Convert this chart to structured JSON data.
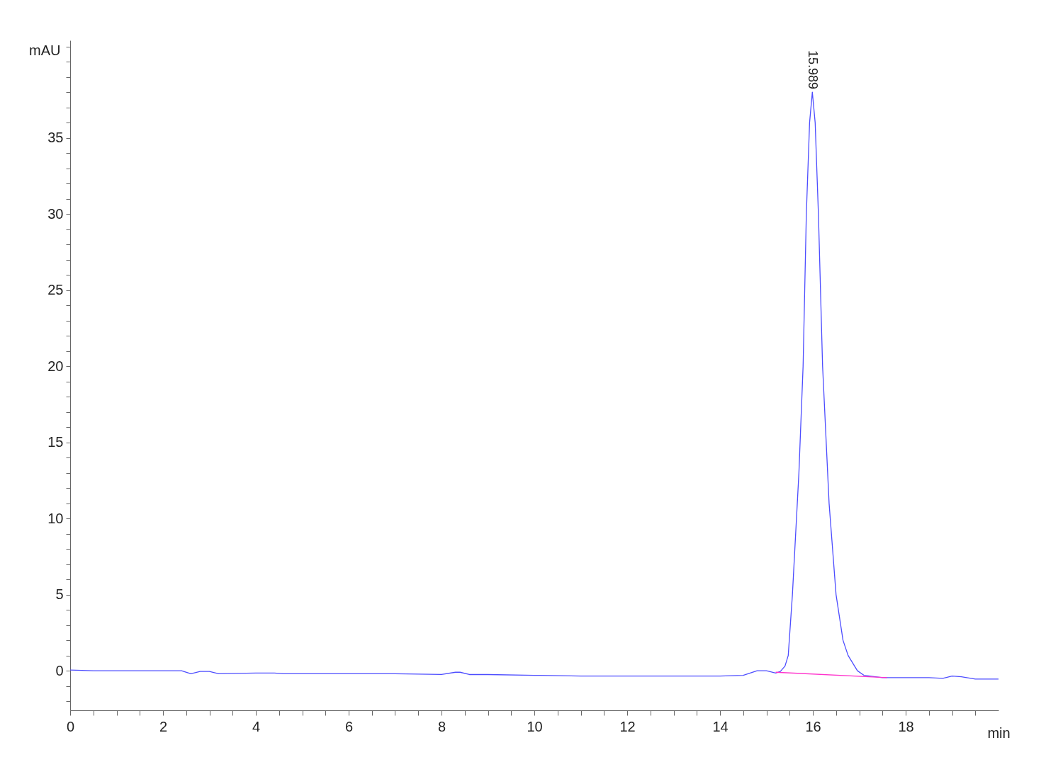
{
  "chart_data": {
    "type": "line",
    "xlabel": "min",
    "ylabel": "mAU",
    "xlim": [
      0,
      20
    ],
    "ylim": [
      -2.6,
      41.4
    ],
    "xticks": [
      0,
      {
        "value": 0.5,
        "label": null
      },
      {
        "value": 1,
        "label": null
      },
      {
        "value": 1.5,
        "label": null
      },
      2,
      {
        "value": 2.5,
        "label": null
      },
      {
        "value": 3,
        "label": null
      },
      {
        "value": 3.5,
        "label": null
      },
      4,
      {
        "value": 4.5,
        "label": null
      },
      {
        "value": 5,
        "label": null
      },
      {
        "value": 5.5,
        "label": null
      },
      6,
      {
        "value": 6.5,
        "label": null
      },
      {
        "value": 7,
        "label": null
      },
      {
        "value": 7.5,
        "label": null
      },
      8,
      {
        "value": 8.5,
        "label": null
      },
      {
        "value": 9,
        "label": null
      },
      {
        "value": 9.5,
        "label": null
      },
      10,
      {
        "value": 10.5,
        "label": null
      },
      {
        "value": 11,
        "label": null
      },
      {
        "value": 11.5,
        "label": null
      },
      12,
      {
        "value": 12.5,
        "label": null
      },
      {
        "value": 13,
        "label": null
      },
      {
        "value": 13.5,
        "label": null
      },
      14,
      {
        "value": 14.5,
        "label": null
      },
      {
        "value": 15,
        "label": null
      },
      {
        "value": 15.5,
        "label": null
      },
      16,
      {
        "value": 16.5,
        "label": null
      },
      {
        "value": 17,
        "label": null
      },
      {
        "value": 17.5,
        "label": null
      },
      18,
      {
        "value": 18.5,
        "label": null
      },
      {
        "value": 19,
        "label": null
      },
      {
        "value": 19.5,
        "label": null
      }
    ],
    "yticks": [
      {
        "value": -2,
        "label": null
      },
      {
        "value": -1,
        "label": null
      },
      0,
      {
        "value": 1,
        "label": null
      },
      {
        "value": 2,
        "label": null
      },
      {
        "value": 3,
        "label": null
      },
      {
        "value": 4,
        "label": null
      },
      5,
      {
        "value": 6,
        "label": null
      },
      {
        "value": 7,
        "label": null
      },
      {
        "value": 8,
        "label": null
      },
      {
        "value": 9,
        "label": null
      },
      10,
      {
        "value": 11,
        "label": null
      },
      {
        "value": 12,
        "label": null
      },
      {
        "value": 13,
        "label": null
      },
      {
        "value": 14,
        "label": null
      },
      15,
      {
        "value": 16,
        "label": null
      },
      {
        "value": 17,
        "label": null
      },
      {
        "value": 18,
        "label": null
      },
      {
        "value": 19,
        "label": null
      },
      20,
      {
        "value": 21,
        "label": null
      },
      {
        "value": 22,
        "label": null
      },
      {
        "value": 23,
        "label": null
      },
      {
        "value": 24,
        "label": null
      },
      25,
      {
        "value": 26,
        "label": null
      },
      {
        "value": 27,
        "label": null
      },
      {
        "value": 28,
        "label": null
      },
      {
        "value": 29,
        "label": null
      },
      30,
      {
        "value": 31,
        "label": null
      },
      {
        "value": 32,
        "label": null
      },
      {
        "value": 33,
        "label": null
      },
      {
        "value": 34,
        "label": null
      },
      35,
      {
        "value": 36,
        "label": null
      },
      {
        "value": 37,
        "label": null
      },
      {
        "value": 38,
        "label": null
      },
      {
        "value": 39,
        "label": null
      },
      {
        "value": 40,
        "label": null
      },
      {
        "value": 41,
        "label": null
      }
    ],
    "grid": false,
    "series": [
      {
        "color": "#4d4dff",
        "x": [
          0,
          0.5,
          1,
          2,
          2.4,
          2.6,
          2.8,
          3,
          3.2,
          4,
          4.4,
          4.6,
          5,
          6,
          7,
          8,
          8.3,
          8.4,
          8.6,
          9,
          10,
          11,
          12,
          13,
          14,
          14.5,
          14.8,
          15,
          15.2,
          15.3,
          15.4,
          15.47,
          15.56,
          15.7,
          15.79,
          15.86,
          15.93,
          15.989,
          16.05,
          16.12,
          16.21,
          16.35,
          16.5,
          16.65,
          16.76,
          16.96,
          17.1,
          17.5,
          18,
          18.5,
          18.8,
          19,
          19.2,
          19.5,
          20
        ],
        "values": [
          0.05,
          0,
          0,
          0,
          0,
          -0.2,
          -0.05,
          -0.05,
          -0.2,
          -0.15,
          -0.15,
          -0.2,
          -0.2,
          -0.2,
          -0.2,
          -0.25,
          -0.1,
          -0.1,
          -0.25,
          -0.25,
          -0.3,
          -0.35,
          -0.35,
          -0.35,
          -0.35,
          -0.3,
          0,
          0,
          -0.15,
          -0.05,
          0.3,
          1,
          5,
          13,
          20,
          30,
          36,
          38,
          36,
          30,
          20,
          11,
          5,
          2,
          1,
          0,
          -0.3,
          -0.45,
          -0.45,
          -0.45,
          -0.5,
          -0.35,
          -0.4,
          -0.55,
          -0.55
        ]
      },
      {
        "color": "#ff33cc",
        "x": [
          15.2,
          17.6
        ],
        "values": [
          -0.1,
          -0.45
        ]
      }
    ],
    "annotations": [
      {
        "text": "15.989",
        "x": 15.989,
        "y": 38
      }
    ]
  }
}
